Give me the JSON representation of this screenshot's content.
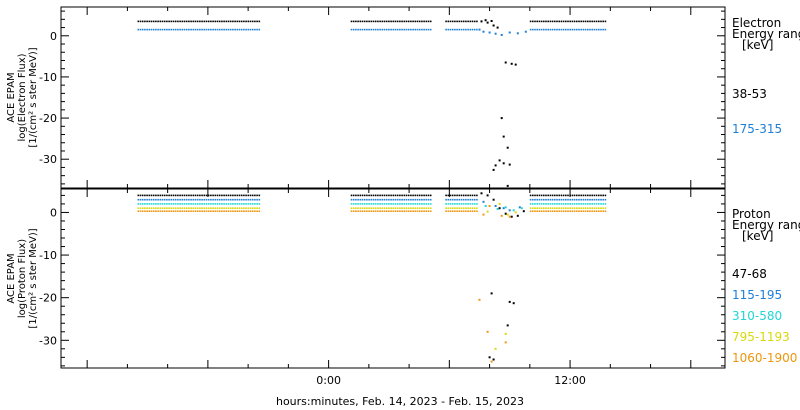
{
  "chart_data": [
    {
      "type": "scatter",
      "ylabel": [
        "ACE EPAM",
        "log(Electron Flux)",
        "[1/(cm² s ster MeV)]"
      ],
      "ylim": [
        -37,
        7
      ],
      "yticks": [
        0,
        -10,
        -20,
        -30
      ],
      "legend": {
        "title": [
          "Electron",
          "Energy ranges",
          "[keV]"
        ],
        "entries": [
          {
            "label": "38-53",
            "color": "#000000"
          },
          {
            "label": "175-315",
            "color": "#1f80d8"
          }
        ]
      },
      "series": [
        {
          "name": "38-53",
          "color": "#000000",
          "segments": [
            {
              "x0": -9.5,
              "x1": -3.4,
              "y": 3.5
            },
            {
              "x0": 1.1,
              "x1": 5.1,
              "y": 3.5
            },
            {
              "x0": 5.8,
              "x1": 7.4,
              "y": 3.5
            },
            {
              "x0": 10.0,
              "x1": 13.8,
              "y": 3.5
            }
          ],
          "points": [
            {
              "x": 7.6,
              "y": 3.5
            },
            {
              "x": 7.9,
              "y": 3.2
            },
            {
              "x": 8.2,
              "y": 2.5
            },
            {
              "x": 8.4,
              "y": 2.0
            },
            {
              "x": 7.8,
              "y": 3.8
            },
            {
              "x": 8.1,
              "y": 3.6
            },
            {
              "x": 8.8,
              "y": -6.5
            },
            {
              "x": 9.1,
              "y": -6.8
            },
            {
              "x": 9.3,
              "y": -7.0
            },
            {
              "x": 8.6,
              "y": -20
            },
            {
              "x": 8.7,
              "y": -24.5
            },
            {
              "x": 8.9,
              "y": -27.2
            },
            {
              "x": 8.5,
              "y": -30.3
            },
            {
              "x": 8.3,
              "y": -31.5
            },
            {
              "x": 8.2,
              "y": -32.6
            },
            {
              "x": 8.7,
              "y": -31.0
            },
            {
              "x": 9.0,
              "y": -31.3
            },
            {
              "x": 8.9,
              "y": -36.5
            }
          ]
        },
        {
          "name": "175-315",
          "color": "#1f80d8",
          "segments": [
            {
              "x0": -9.5,
              "x1": -3.4,
              "y": 1.5
            },
            {
              "x0": 1.1,
              "x1": 5.1,
              "y": 1.5
            },
            {
              "x0": 5.8,
              "x1": 7.4,
              "y": 1.5
            },
            {
              "x0": 10.0,
              "x1": 13.8,
              "y": 1.5
            }
          ],
          "points": [
            {
              "x": 7.5,
              "y": 1.5
            },
            {
              "x": 7.7,
              "y": 1.0
            },
            {
              "x": 8.0,
              "y": 0.8
            },
            {
              "x": 8.3,
              "y": 0.5
            },
            {
              "x": 8.6,
              "y": 0.2
            },
            {
              "x": 9.0,
              "y": 0.8
            },
            {
              "x": 9.4,
              "y": 0.6
            },
            {
              "x": 9.8,
              "y": 1.0
            }
          ]
        }
      ]
    },
    {
      "type": "scatter",
      "ylabel": [
        "ACE EPAM",
        "log(Proton Flux)",
        "[1/(cm² s ster MeV)]"
      ],
      "ylim": [
        -36.5,
        5.5
      ],
      "yticks": [
        0,
        -10,
        -20,
        -30
      ],
      "xlim": [
        -13.3,
        19.7
      ],
      "xticks": [
        {
          "x": 0,
          "label": "0:00"
        },
        {
          "x": 12,
          "label": "12:00"
        }
      ],
      "xlabel": "hours:minutes, Feb. 14, 2023 - Feb. 15, 2023",
      "legend": {
        "title": [
          "Proton",
          "Energy ranges",
          "[keV]"
        ],
        "entries": [
          {
            "label": "47-68",
            "color": "#000000"
          },
          {
            "label": "115-195",
            "color": "#1f80d8"
          },
          {
            "label": "310-580",
            "color": "#22d5d5"
          },
          {
            "label": "795-1193",
            "color": "#d8d80c"
          },
          {
            "label": "1060-1900",
            "color": "#f0960c"
          }
        ]
      },
      "series": [
        {
          "name": "47-68",
          "color": "#000000",
          "segments": [
            {
              "x0": -9.5,
              "x1": -3.4,
              "y": 4.0
            },
            {
              "x0": 1.1,
              "x1": 5.1,
              "y": 4.0
            },
            {
              "x0": 5.8,
              "x1": 7.4,
              "y": 4.0
            },
            {
              "x0": 10.0,
              "x1": 13.8,
              "y": 4.0
            }
          ],
          "points": [
            {
              "x": 7.6,
              "y": 4.5
            },
            {
              "x": 7.9,
              "y": 4.0
            },
            {
              "x": 8.2,
              "y": 3.0
            },
            {
              "x": 8.5,
              "y": 1.0
            },
            {
              "x": 8.8,
              "y": -0.3
            },
            {
              "x": 9.1,
              "y": -1.0
            },
            {
              "x": 9.4,
              "y": -0.8
            },
            {
              "x": 9.7,
              "y": 0.3
            },
            {
              "x": 8.1,
              "y": -19.0
            },
            {
              "x": 9.0,
              "y": -21.0
            },
            {
              "x": 9.2,
              "y": -21.3
            },
            {
              "x": 8.9,
              "y": -26.5
            },
            {
              "x": 8.0,
              "y": -34.0
            },
            {
              "x": 8.2,
              "y": -34.5
            }
          ]
        },
        {
          "name": "115-195",
          "color": "#1f80d8",
          "segments": [
            {
              "x0": -9.5,
              "x1": -3.4,
              "y": 3.0
            },
            {
              "x0": 1.1,
              "x1": 5.1,
              "y": 3.0
            },
            {
              "x0": 5.8,
              "x1": 7.4,
              "y": 3.0
            },
            {
              "x0": 10.0,
              "x1": 13.8,
              "y": 3.0
            }
          ],
          "points": [
            {
              "x": 7.7,
              "y": 2.5
            },
            {
              "x": 8.3,
              "y": 1.5
            },
            {
              "x": 8.7,
              "y": 1.0
            },
            {
              "x": 9.0,
              "y": 0.5
            },
            {
              "x": 9.5,
              "y": 1.2
            }
          ]
        },
        {
          "name": "310-580",
          "color": "#22d5d5",
          "segments": [
            {
              "x0": -9.5,
              "x1": -3.4,
              "y": 2.0
            },
            {
              "x0": 1.1,
              "x1": 5.1,
              "y": 2.0
            },
            {
              "x0": 5.8,
              "x1": 7.4,
              "y": 2.0
            },
            {
              "x0": 10.0,
              "x1": 13.8,
              "y": 2.0
            }
          ],
          "points": [
            {
              "x": 7.8,
              "y": 1.5
            },
            {
              "x": 8.4,
              "y": 0.8
            },
            {
              "x": 8.8,
              "y": 1.2
            },
            {
              "x": 9.2,
              "y": 0.5
            },
            {
              "x": 9.6,
              "y": 1.0
            }
          ]
        },
        {
          "name": "795-1193",
          "color": "#d8d80c",
          "segments": [
            {
              "x0": -9.5,
              "x1": -3.4,
              "y": 1.0
            },
            {
              "x0": 1.1,
              "x1": 5.1,
              "y": 1.0
            },
            {
              "x0": 5.8,
              "x1": 7.4,
              "y": 1.0
            },
            {
              "x0": 10.0,
              "x1": 13.8,
              "y": 1.0
            }
          ],
          "points": [
            {
              "x": 7.9,
              "y": 0.2
            },
            {
              "x": 8.5,
              "y": 2.0
            },
            {
              "x": 8.9,
              "y": -0.5
            },
            {
              "x": 9.3,
              "y": 0.0
            },
            {
              "x": 8.8,
              "y": -28.5
            },
            {
              "x": 8.3,
              "y": -32.0
            }
          ]
        },
        {
          "name": "1060-1900",
          "color": "#f0960c",
          "segments": [
            {
              "x0": -9.5,
              "x1": -3.4,
              "y": 0.3
            },
            {
              "x0": 1.1,
              "x1": 5.1,
              "y": 0.3
            },
            {
              "x0": 5.8,
              "x1": 7.4,
              "y": 0.3
            },
            {
              "x0": 10.0,
              "x1": 13.8,
              "y": 0.3
            }
          ],
          "points": [
            {
              "x": 7.7,
              "y": -0.5
            },
            {
              "x": 8.0,
              "y": 1.5
            },
            {
              "x": 8.6,
              "y": -0.8
            },
            {
              "x": 9.0,
              "y": -1.0
            },
            {
              "x": 7.5,
              "y": -20.5
            },
            {
              "x": 7.9,
              "y": -28.0
            },
            {
              "x": 8.8,
              "y": -30.5
            },
            {
              "x": 8.1,
              "y": -35.0
            }
          ]
        }
      ]
    }
  ]
}
